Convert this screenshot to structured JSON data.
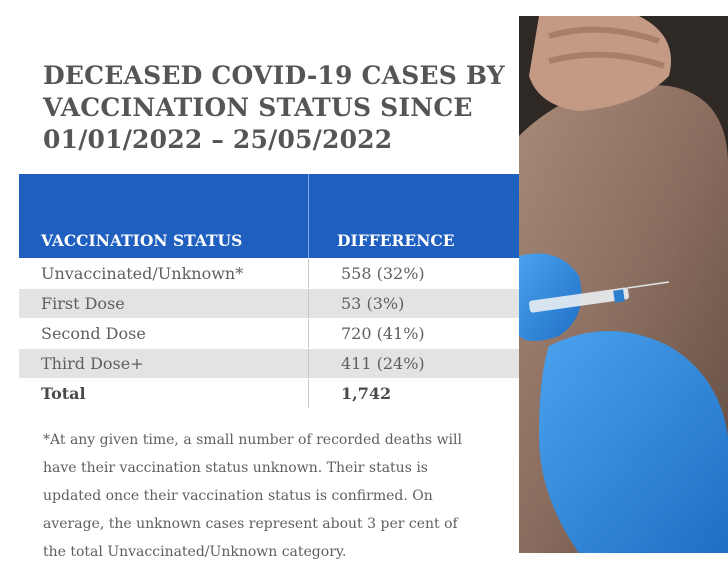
{
  "title": {
    "line1": "DECEASED COVID-19 CASES BY",
    "line2": "VACCINATION STATUS SINCE",
    "line3": "01/01/2022 – 25/05/2022"
  },
  "table": {
    "headers": [
      "VACCINATION STATUS",
      "DIFFERENCE"
    ],
    "rows": [
      {
        "status": "Unvaccinated/Unknown*",
        "difference": "558 (32%)"
      },
      {
        "status": "First Dose",
        "difference": "53 (3%)"
      },
      {
        "status": "Second Dose",
        "difference": "720 (41%)"
      },
      {
        "status": "Third Dose+",
        "difference": "411 (24%)"
      },
      {
        "status": "Total",
        "difference": "1,742"
      }
    ]
  },
  "footnote": "*At any given time, a small number of recorded deaths will have their vaccination status unknown. Their status is updated once their vaccination status is confirmed. On average, the unknown cases represent about 3 per cent of the total Unvaccinated/Unknown category.",
  "colors": {
    "header_blue": "#1f5fbf",
    "row_shade": "#e3e3e3",
    "title_gray": "#555555",
    "glove_blue": "#2f8fe0"
  },
  "photo": {
    "icon": "vaccination-photo"
  }
}
